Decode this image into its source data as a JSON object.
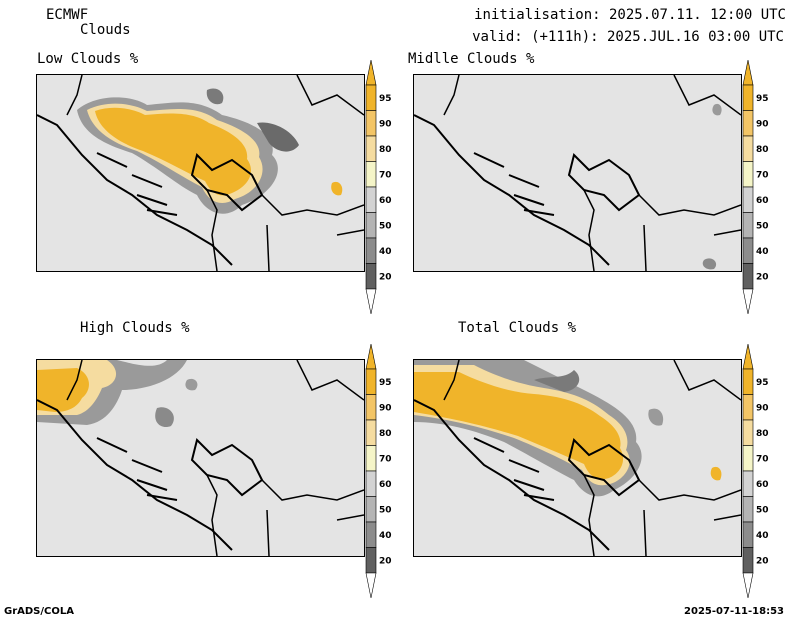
{
  "header": {
    "model": "ECMWF",
    "variable": "Clouds",
    "initialisation": "initialisation: 2025.07.11. 12:00 UTC",
    "valid": "valid: (+111h): 2025.JUL.16 03:00 UTC"
  },
  "panels": [
    {
      "title": "Low Clouds %"
    },
    {
      "title": "Midlle Clouds %"
    },
    {
      "title": "High Clouds %"
    },
    {
      "title": "Total Clouds %"
    }
  ],
  "colorbar": {
    "labels": [
      "95",
      "90",
      "80",
      "70",
      "60",
      "50",
      "40",
      "20"
    ],
    "colors": [
      "#f0b42a",
      "#f3c566",
      "#f5dca0",
      "#f5f5c8",
      "#d3d3d3",
      "#b4b4b4",
      "#8c8c8c",
      "#606060"
    ]
  },
  "footer": {
    "left": "GrADS/COLA",
    "right": "2025-07-11-18:53"
  }
}
